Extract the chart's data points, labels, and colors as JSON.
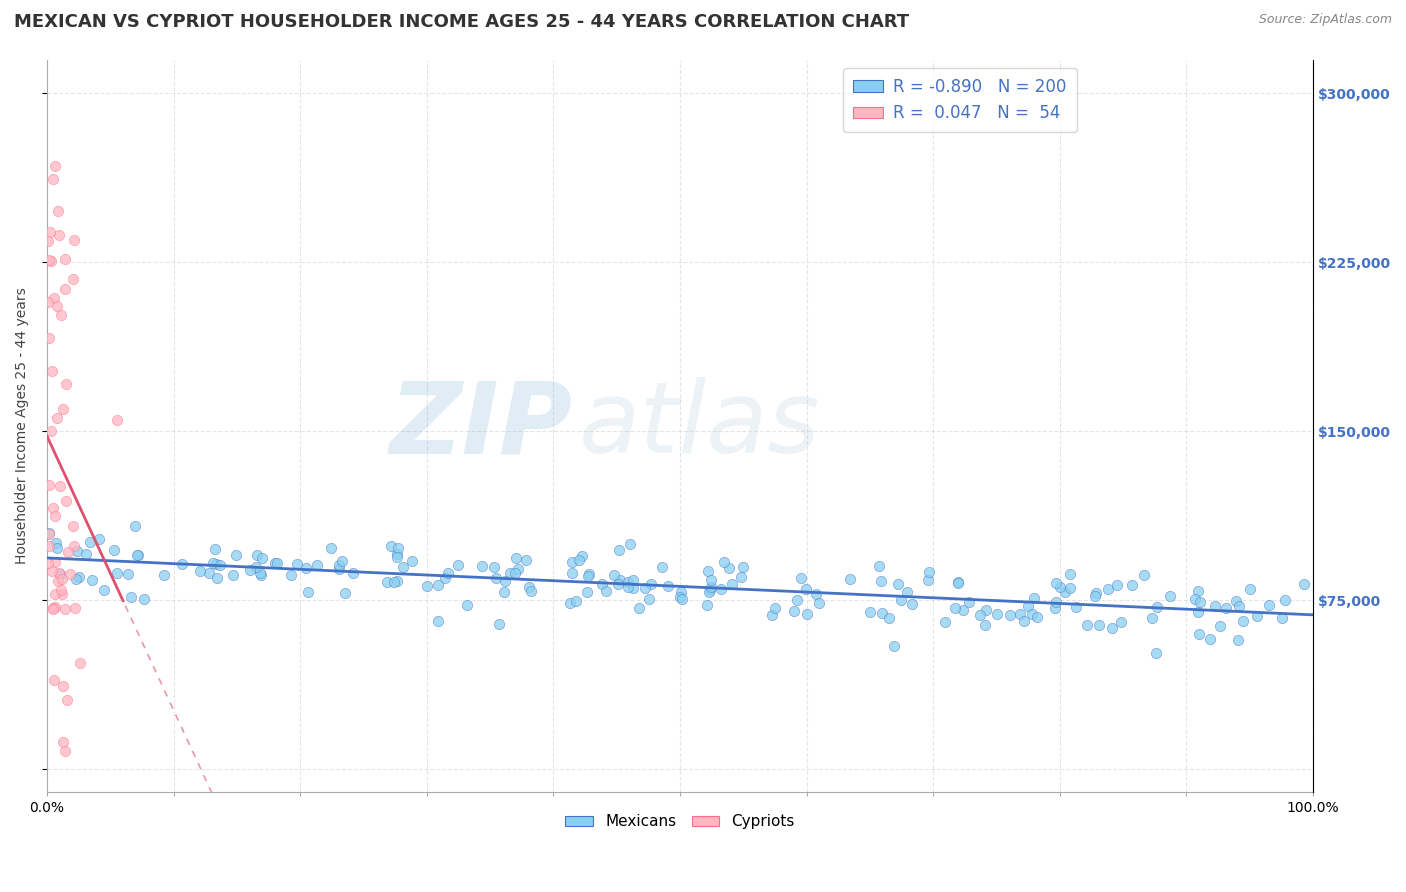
{
  "title": "MEXICAN VS CYPRIOT HOUSEHOLDER INCOME AGES 25 - 44 YEARS CORRELATION CHART",
  "source": "Source: ZipAtlas.com",
  "ylabel": "Householder Income Ages 25 - 44 years",
  "xlim": [
    0.0,
    1.0
  ],
  "ylim": [
    -10000,
    315000
  ],
  "yticks": [
    0,
    75000,
    150000,
    225000,
    300000
  ],
  "ytick_labels": [
    "",
    "$75,000",
    "$150,000",
    "$225,000",
    "$300,000"
  ],
  "xticks": [
    0.0,
    0.1,
    0.2,
    0.3,
    0.4,
    0.5,
    0.6,
    0.7,
    0.8,
    0.9,
    1.0
  ],
  "xtick_labels": [
    "0.0%",
    "",
    "",
    "",
    "",
    "",
    "",
    "",
    "",
    "",
    "100.0%"
  ],
  "title_fontsize": 13,
  "axis_label_fontsize": 10,
  "tick_fontsize": 10,
  "watermark_zip": "ZIP",
  "watermark_atlas": "atlas",
  "legend_label1": "R = -0.890   N = 200",
  "legend_label2": "R =  0.047   N =  54",
  "mexican_color": "#89CFF0",
  "cypriot_color": "#FFB6C1",
  "mexican_edge_color": "#4472C4",
  "cypriot_edge_color": "#FF6B8A",
  "mexican_line_color": "#4472C4",
  "cypriot_line_color": "#E05070",
  "background_color": "#FFFFFF",
  "grid_color": "#CCCCCC",
  "ytick_right_color": "#4472C4",
  "title_color": "#333333",
  "source_color": "#888888",
  "legend_text_color": "#4472C4"
}
